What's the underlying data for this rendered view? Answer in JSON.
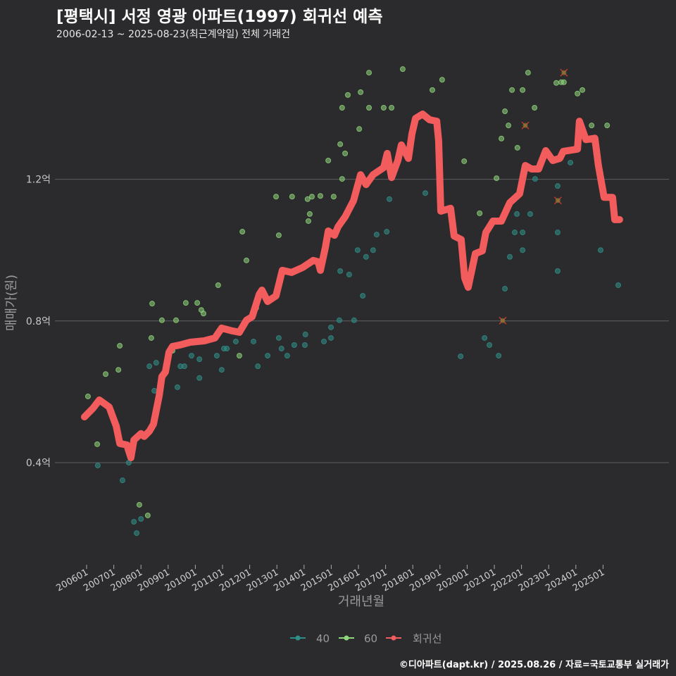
{
  "title": "[평택시] 서정 영광 아파트(1997) 회귀선 예측",
  "subtitle": "2006-02-13 ~ 2025-08-23(최근계약일) 전체 거래건",
  "footer": "©디아파트(dapt.kr) / 2025.08.26 / 자료=국토교통부 실거래가",
  "colors": {
    "background": "#2b2a2c",
    "series_40": "#2f8f88",
    "series_60": "#8ed67a",
    "regression": "#f25c5c",
    "cancelled": "#c0392b",
    "grid": "#5f5e60"
  },
  "chart_data": {
    "type": "scatter",
    "xlabel": "거래년월",
    "ylabel": "매매가(원)",
    "xlim": [
      2005.85,
      2025.75
    ],
    "ylim": [
      0.13,
      1.57
    ],
    "grid": true,
    "legend_placement": "bottom",
    "x_ticks": [
      {
        "value": 2006,
        "label": "200601"
      },
      {
        "value": 2007,
        "label": "200701"
      },
      {
        "value": 2008,
        "label": "200801"
      },
      {
        "value": 2009,
        "label": "200901"
      },
      {
        "value": 2010,
        "label": "201001"
      },
      {
        "value": 2011,
        "label": "201101"
      },
      {
        "value": 2012,
        "label": "201201"
      },
      {
        "value": 2013,
        "label": "201301"
      },
      {
        "value": 2014,
        "label": "201401"
      },
      {
        "value": 2015,
        "label": "201501"
      },
      {
        "value": 2016,
        "label": "201601"
      },
      {
        "value": 2017,
        "label": "201701"
      },
      {
        "value": 2018,
        "label": "201801"
      },
      {
        "value": 2019,
        "label": "201901"
      },
      {
        "value": 2020,
        "label": "202001"
      },
      {
        "value": 2021,
        "label": "202101"
      },
      {
        "value": 2022,
        "label": "202201"
      },
      {
        "value": 2023,
        "label": "202301"
      },
      {
        "value": 2024,
        "label": "202401"
      },
      {
        "value": 2025,
        "label": "202501"
      }
    ],
    "y_ticks": [
      {
        "value": 0.4,
        "label": "0.4억"
      },
      {
        "value": 0.8,
        "label": "0.8억"
      },
      {
        "value": 1.2,
        "label": "1.2억"
      }
    ],
    "legend": [
      {
        "name": "40",
        "key": "series_40"
      },
      {
        "name": "60",
        "key": "series_60"
      },
      {
        "name": "회귀선",
        "key": "regression"
      }
    ],
    "series": [
      {
        "name": "40",
        "points": [
          [
            2006.41,
            0.392
          ],
          [
            2007.32,
            0.35
          ],
          [
            2007.55,
            0.4
          ],
          [
            2007.74,
            0.233
          ],
          [
            2007.84,
            0.201
          ],
          [
            2008.0,
            0.241
          ],
          [
            2008.31,
            0.672
          ],
          [
            2008.49,
            0.603
          ],
          [
            2008.56,
            0.682
          ],
          [
            2009.34,
            0.613
          ],
          [
            2009.45,
            0.672
          ],
          [
            2009.6,
            0.672
          ],
          [
            2009.86,
            0.702
          ],
          [
            2010.15,
            0.639
          ],
          [
            2010.15,
            0.692
          ],
          [
            2010.79,
            0.702
          ],
          [
            2010.97,
            0.662
          ],
          [
            2011.05,
            0.722
          ],
          [
            2011.16,
            0.722
          ],
          [
            2011.49,
            0.742
          ],
          [
            2012.14,
            0.742
          ],
          [
            2012.3,
            0.672
          ],
          [
            2012.66,
            0.702
          ],
          [
            2013.07,
            0.752
          ],
          [
            2013.17,
            0.722
          ],
          [
            2013.38,
            0.702
          ],
          [
            2013.64,
            0.732
          ],
          [
            2014.03,
            0.732
          ],
          [
            2014.05,
            0.762
          ],
          [
            2014.73,
            0.742
          ],
          [
            2014.99,
            0.782
          ],
          [
            2014.99,
            0.752
          ],
          [
            2015.3,
            0.802
          ],
          [
            2015.33,
            0.941
          ],
          [
            2015.66,
            0.931
          ],
          [
            2015.84,
            0.802
          ],
          [
            2015.97,
            1.0
          ],
          [
            2016.16,
            0.871
          ],
          [
            2016.28,
            0.981
          ],
          [
            2016.54,
            1.0
          ],
          [
            2016.67,
            1.044
          ],
          [
            2017.04,
            1.052
          ],
          [
            2017.14,
            1.144
          ],
          [
            2018.46,
            1.161
          ],
          [
            2019.76,
            0.7
          ],
          [
            2020.64,
            0.752
          ],
          [
            2020.82,
            0.732
          ],
          [
            2021.16,
            0.702
          ],
          [
            2021.39,
            0.891
          ],
          [
            2021.57,
            0.981
          ],
          [
            2021.75,
            1.05
          ],
          [
            2021.83,
            1.102
          ],
          [
            2022.04,
            1.0
          ],
          [
            2022.04,
            1.05
          ],
          [
            2022.32,
            1.102
          ],
          [
            2022.5,
            1.201
          ],
          [
            2023.33,
            1.181
          ],
          [
            2023.33,
            1.05
          ],
          [
            2023.33,
            0.941
          ],
          [
            2023.8,
            1.247
          ],
          [
            2024.91,
            1.0
          ],
          [
            2025.56,
            0.901
          ]
        ]
      },
      {
        "name": "60",
        "points": [
          [
            2006.05,
            0.587
          ],
          [
            2006.39,
            0.452
          ],
          [
            2006.7,
            0.65
          ],
          [
            2007.17,
            0.662
          ],
          [
            2007.22,
            0.73
          ],
          [
            2007.94,
            0.281
          ],
          [
            2008.25,
            0.251
          ],
          [
            2008.38,
            0.752
          ],
          [
            2008.41,
            0.849
          ],
          [
            2008.77,
            0.802
          ],
          [
            2009.16,
            0.716
          ],
          [
            2009.29,
            0.802
          ],
          [
            2009.65,
            0.851
          ],
          [
            2010.07,
            0.851
          ],
          [
            2010.22,
            0.831
          ],
          [
            2010.3,
            0.821
          ],
          [
            2010.84,
            0.901
          ],
          [
            2011.62,
            0.702
          ],
          [
            2011.73,
            1.052
          ],
          [
            2011.88,
            0.971
          ],
          [
            2012.24,
            0.837
          ],
          [
            2012.97,
            1.151
          ],
          [
            2013.07,
            1.042
          ],
          [
            2013.56,
            1.151
          ],
          [
            2014.13,
            1.144
          ],
          [
            2014.21,
            1.102
          ],
          [
            2014.16,
            1.082
          ],
          [
            2014.29,
            1.151
          ],
          [
            2014.6,
            1.153
          ],
          [
            2014.89,
            1.253
          ],
          [
            2015.09,
            1.151
          ],
          [
            2015.33,
            1.299
          ],
          [
            2015.4,
            1.201
          ],
          [
            2015.51,
            1.273
          ],
          [
            2015.4,
            1.402
          ],
          [
            2015.61,
            1.438
          ],
          [
            2016.03,
            1.342
          ],
          [
            2016.08,
            1.446
          ],
          [
            2016.39,
            1.501
          ],
          [
            2016.39,
            1.402
          ],
          [
            2016.93,
            1.402
          ],
          [
            2017.22,
            1.402
          ],
          [
            2017.63,
            1.511
          ],
          [
            2018.72,
            1.452
          ],
          [
            2019.08,
            1.481
          ],
          [
            2019.89,
            1.251
          ],
          [
            2020.46,
            1.104
          ],
          [
            2021.08,
            1.203
          ],
          [
            2021.26,
            1.315
          ],
          [
            2021.39,
            1.392
          ],
          [
            2021.52,
            1.352
          ],
          [
            2021.65,
            1.452
          ],
          [
            2021.85,
            1.289
          ],
          [
            2022.04,
            1.452
          ],
          [
            2022.24,
            1.501
          ],
          [
            2022.48,
            1.402
          ],
          [
            2023.28,
            1.472
          ],
          [
            2023.46,
            1.474
          ],
          [
            2023.56,
            1.474
          ],
          [
            2024.06,
            1.442
          ],
          [
            2024.24,
            1.452
          ],
          [
            2024.58,
            1.352
          ],
          [
            2025.15,
            1.352
          ]
        ]
      },
      {
        "name": "회귀선",
        "points": [
          [
            2005.92,
            0.529
          ],
          [
            2006.23,
            0.553
          ],
          [
            2006.47,
            0.577
          ],
          [
            2006.83,
            0.557
          ],
          [
            2007.09,
            0.503
          ],
          [
            2007.22,
            0.454
          ],
          [
            2007.48,
            0.45
          ],
          [
            2007.63,
            0.414
          ],
          [
            2007.74,
            0.464
          ],
          [
            2008.0,
            0.482
          ],
          [
            2008.12,
            0.474
          ],
          [
            2008.31,
            0.489
          ],
          [
            2008.46,
            0.509
          ],
          [
            2008.67,
            0.589
          ],
          [
            2008.77,
            0.643
          ],
          [
            2008.9,
            0.656
          ],
          [
            2009.03,
            0.712
          ],
          [
            2009.16,
            0.728
          ],
          [
            2009.42,
            0.732
          ],
          [
            2009.81,
            0.74
          ],
          [
            2010.33,
            0.744
          ],
          [
            2010.72,
            0.752
          ],
          [
            2010.97,
            0.78
          ],
          [
            2011.36,
            0.772
          ],
          [
            2011.62,
            0.768
          ],
          [
            2011.88,
            0.802
          ],
          [
            2012.09,
            0.812
          ],
          [
            2012.35,
            0.875
          ],
          [
            2012.45,
            0.887
          ],
          [
            2012.66,
            0.855
          ],
          [
            2012.97,
            0.871
          ],
          [
            2013.2,
            0.943
          ],
          [
            2013.54,
            0.937
          ],
          [
            2013.95,
            0.951
          ],
          [
            2014.34,
            0.971
          ],
          [
            2014.52,
            0.967
          ],
          [
            2014.6,
            0.943
          ],
          [
            2014.78,
            1.006
          ],
          [
            2014.89,
            1.054
          ],
          [
            2015.12,
            1.042
          ],
          [
            2015.25,
            1.066
          ],
          [
            2015.51,
            1.094
          ],
          [
            2015.82,
            1.14
          ],
          [
            2016.08,
            1.213
          ],
          [
            2016.28,
            1.185
          ],
          [
            2016.54,
            1.213
          ],
          [
            2016.93,
            1.233
          ],
          [
            2017.06,
            1.273
          ],
          [
            2017.22,
            1.205
          ],
          [
            2017.45,
            1.253
          ],
          [
            2017.58,
            1.297
          ],
          [
            2017.84,
            1.259
          ],
          [
            2017.97,
            1.328
          ],
          [
            2018.1,
            1.372
          ],
          [
            2018.36,
            1.384
          ],
          [
            2018.62,
            1.368
          ],
          [
            2018.88,
            1.364
          ],
          [
            2018.95,
            1.309
          ],
          [
            2019.03,
            1.11
          ],
          [
            2019.39,
            1.118
          ],
          [
            2019.52,
            1.04
          ],
          [
            2019.78,
            1.03
          ],
          [
            2019.91,
            0.921
          ],
          [
            2020.04,
            0.895
          ],
          [
            2020.3,
            0.99
          ],
          [
            2020.56,
            0.998
          ],
          [
            2020.69,
            1.05
          ],
          [
            2020.95,
            1.082
          ],
          [
            2021.26,
            1.082
          ],
          [
            2021.57,
            1.134
          ],
          [
            2021.93,
            1.159
          ],
          [
            2022.14,
            1.239
          ],
          [
            2022.37,
            1.229
          ],
          [
            2022.63,
            1.229
          ],
          [
            2022.89,
            1.281
          ],
          [
            2023.15,
            1.253
          ],
          [
            2023.41,
            1.259
          ],
          [
            2023.54,
            1.279
          ],
          [
            2024.06,
            1.285
          ],
          [
            2024.13,
            1.364
          ],
          [
            2024.37,
            1.312
          ],
          [
            2024.7,
            1.316
          ],
          [
            2024.83,
            1.239
          ],
          [
            2025.04,
            1.149
          ],
          [
            2025.35,
            1.149
          ],
          [
            2025.43,
            1.086
          ],
          [
            2025.61,
            1.086
          ]
        ]
      }
    ],
    "cancelled_points": [
      [
        2023.56,
        1.501
      ],
      [
        2022.14,
        1.352
      ],
      [
        2023.34,
        1.14
      ],
      [
        2021.31,
        0.801
      ]
    ]
  }
}
